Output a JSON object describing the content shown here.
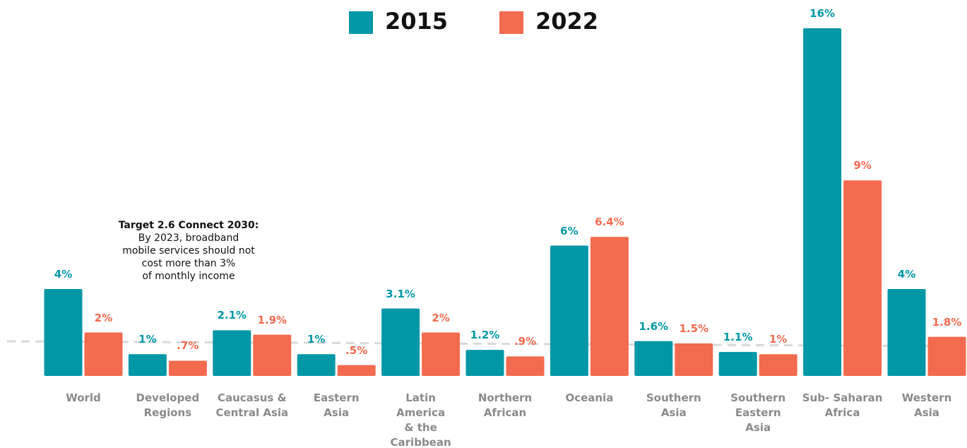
{
  "chart_data": {
    "type": "bar",
    "categories": [
      "World",
      "Developed\nRegions",
      "Caucasus &\nCentral Asia",
      "Eastern\nAsia",
      "Latin\nAmerica\n& the\nCaribbean",
      "Northern\nAfrican",
      "Oceania",
      "Southern\nAsia",
      "Southern\nEastern\nAsia",
      "Sub- Saharan\nAfrica",
      "Western\nAsia"
    ],
    "series": [
      {
        "name": "2015",
        "color": "#0097a7",
        "values": [
          4,
          1,
          2.1,
          1,
          3.1,
          1.2,
          6,
          1.6,
          1.1,
          16,
          4
        ],
        "value_labels": [
          "4%",
          "1%",
          "2.1%",
          "1%",
          "3.1%",
          "1.2%",
          "6%",
          "1.6%",
          "1.1%",
          "16%",
          "4%"
        ]
      },
      {
        "name": "2022",
        "color": "#f26b4f",
        "values": [
          2,
          0.7,
          1.9,
          0.5,
          2,
          0.9,
          6.4,
          1.5,
          1,
          9,
          1.8
        ],
        "value_labels": [
          "2%",
          ".7%",
          "1.9%",
          ".5%",
          "2%",
          ".9%",
          "6.4%",
          "1.5%",
          "1%",
          "9%",
          "1.8%"
        ]
      }
    ],
    "ylim": [
      0,
      16
    ],
    "annotation": {
      "title": "Target 2.6 Connect 2030:",
      "text": "By 2023, broadband\nmobile services should not\ncost more than 3%\nof monthly income"
    }
  }
}
